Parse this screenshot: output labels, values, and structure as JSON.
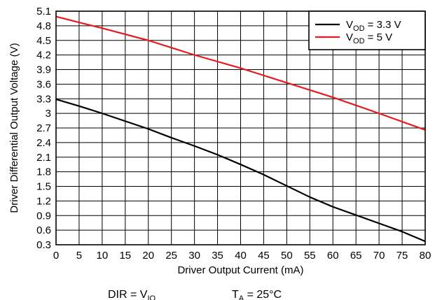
{
  "chart_data": {
    "type": "line",
    "xlabel": "Driver Output Current (mA)",
    "ylabel": "Driver Differential Output Voltage (V)",
    "xlim": [
      0,
      80
    ],
    "ylim": [
      0.3,
      5.1
    ],
    "x_ticks": [
      "0",
      "5",
      "10",
      "15",
      "20",
      "25",
      "30",
      "35",
      "40",
      "45",
      "50",
      "55",
      "60",
      "65",
      "70",
      "75",
      "80"
    ],
    "y_ticks": [
      "0.3",
      "0.6",
      "0.9",
      "1.2",
      "1.5",
      "1.8",
      "2.1",
      "2.4",
      "2.7",
      "3",
      "3.3",
      "3.6",
      "3.9",
      "4.2",
      "4.5",
      "4.8",
      "5.1"
    ],
    "grid": true,
    "legend_position": "top-right",
    "series": [
      {
        "name_main": "V",
        "name_sub": "OD",
        "name_rest": " = 3.3 V",
        "color": "#000000",
        "x": [
          0,
          5,
          10,
          15,
          20,
          25,
          30,
          35,
          40,
          45,
          50,
          55,
          60,
          65,
          70,
          75,
          80
        ],
        "y": [
          3.29,
          3.15,
          3.0,
          2.84,
          2.68,
          2.5,
          2.33,
          2.15,
          1.95,
          1.74,
          1.51,
          1.28,
          1.08,
          0.91,
          0.74,
          0.57,
          0.37
        ]
      },
      {
        "name_main": "V",
        "name_sub": "OD",
        "name_rest": " = 5 V",
        "color": "#e8191f",
        "x": [
          0,
          10,
          20,
          30,
          40,
          50,
          60,
          70,
          80
        ],
        "y": [
          4.99,
          4.75,
          4.5,
          4.2,
          3.93,
          3.63,
          3.33,
          3.0,
          2.66
        ]
      }
    ],
    "conditions": {
      "dir_main": "DIR = V",
      "dir_sub": "IO",
      "ta_main": "T",
      "ta_sub": "A",
      "ta_rest": " = 25°C"
    }
  }
}
